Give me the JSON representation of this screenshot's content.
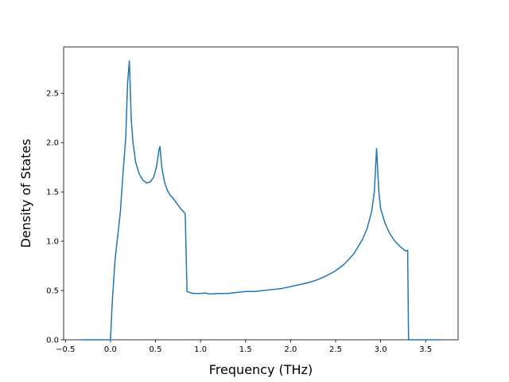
{
  "chart_data": {
    "type": "line",
    "x_label": "Frequency (THz)",
    "y_label": "Density of States",
    "x": [
      -0.32,
      0.0,
      0.02,
      0.05,
      0.08,
      0.11,
      0.14,
      0.17,
      0.19,
      0.21,
      0.23,
      0.25,
      0.28,
      0.32,
      0.36,
      0.4,
      0.44,
      0.48,
      0.51,
      0.54,
      0.55,
      0.57,
      0.6,
      0.63,
      0.66,
      0.7,
      0.74,
      0.78,
      0.83,
      0.85,
      0.88,
      0.92,
      1.0,
      1.05,
      1.1,
      1.2,
      1.3,
      1.4,
      1.5,
      1.6,
      1.7,
      1.8,
      1.9,
      2.0,
      2.1,
      2.2,
      2.3,
      2.4,
      2.5,
      2.6,
      2.7,
      2.8,
      2.85,
      2.9,
      2.93,
      2.955,
      2.98,
      3.0,
      3.05,
      3.1,
      3.15,
      3.2,
      3.25,
      3.28,
      3.3,
      3.31,
      3.66
    ],
    "series": [
      {
        "color": "#1f77b4",
        "values": [
          0,
          0,
          0.38,
          0.8,
          1.05,
          1.3,
          1.7,
          2.05,
          2.6,
          2.83,
          2.25,
          2.0,
          1.8,
          1.68,
          1.62,
          1.59,
          1.6,
          1.65,
          1.75,
          1.93,
          1.96,
          1.75,
          1.6,
          1.52,
          1.47,
          1.43,
          1.38,
          1.33,
          1.28,
          0.49,
          0.48,
          0.47,
          0.47,
          0.475,
          0.465,
          0.47,
          0.47,
          0.48,
          0.49,
          0.49,
          0.5,
          0.51,
          0.52,
          0.54,
          0.56,
          0.58,
          0.61,
          0.65,
          0.7,
          0.77,
          0.87,
          1.02,
          1.13,
          1.3,
          1.5,
          1.94,
          1.5,
          1.33,
          1.18,
          1.08,
          1.01,
          0.96,
          0.92,
          0.9,
          0.91,
          0,
          0
        ]
      }
    ],
    "xlim": [
      -0.52,
      3.86
    ],
    "ylim": [
      0,
      2.97
    ],
    "xticks": [
      {
        "value": -0.5,
        "label": "−0.5"
      },
      {
        "value": 0,
        "label": "0.0"
      },
      {
        "value": 0.5,
        "label": "0.5"
      },
      {
        "value": 1,
        "label": "1.0"
      },
      {
        "value": 1.5,
        "label": "1.5"
      },
      {
        "value": 2,
        "label": "2.0"
      },
      {
        "value": 2.5,
        "label": "2.5"
      },
      {
        "value": 3,
        "label": "3.0"
      },
      {
        "value": 3.5,
        "label": "3.5"
      }
    ],
    "yticks": [
      {
        "value": 0,
        "label": "0.0"
      },
      {
        "value": 0.5,
        "label": "0.5"
      },
      {
        "value": 1,
        "label": "1.0"
      },
      {
        "value": 1.5,
        "label": "1.5"
      },
      {
        "value": 2,
        "label": "2.0"
      },
      {
        "value": 2.5,
        "label": "2.5"
      }
    ]
  }
}
